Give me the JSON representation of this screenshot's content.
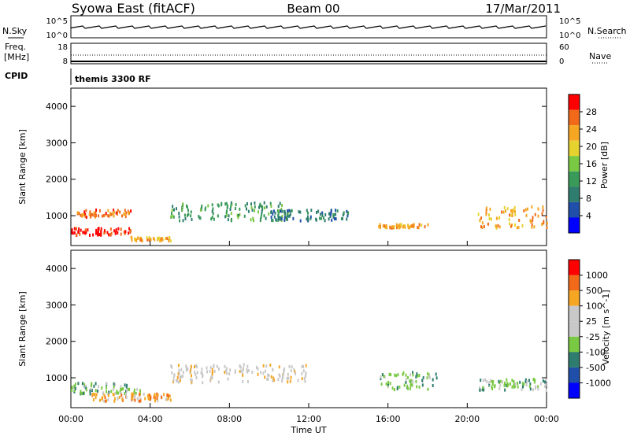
{
  "header": {
    "station": "Syowa East (fitACF)",
    "beam": "Beam 00",
    "date": "17/Mar/2011"
  },
  "noise_panel": {
    "left_label": "N.Sky",
    "right_label": "N.Search",
    "left_ticks": [
      "10^5",
      "10^0"
    ],
    "right_ticks": [
      "10^5",
      "10^0"
    ]
  },
  "freq_panel": {
    "left_label_1": "Freq.",
    "left_label_2": "[MHz]",
    "right_label": "Nave",
    "left_ticks": [
      "18",
      "8"
    ],
    "right_ticks": [
      "60",
      "0"
    ]
  },
  "cpid": {
    "label": "CPID",
    "value": "themis 3300 RF"
  },
  "time_axis": {
    "label": "Time UT",
    "ticks": [
      "00:00",
      "04:00",
      "08:00",
      "12:00",
      "16:00",
      "20:00",
      "00:00"
    ]
  },
  "colors": {
    "power": [
      "#0000ff",
      "#1f4fa8",
      "#2e7d6f",
      "#3a9a5a",
      "#7ac943",
      "#e6d22e",
      "#f5a623",
      "#f06a1a",
      "#ff0000"
    ],
    "velocity": [
      "#ff0000",
      "#f06a1a",
      "#f5a623",
      "#c8c8c8",
      "#c8c8c8",
      "#7ac943",
      "#2e7d6f",
      "#1f4fa8",
      "#0000ff"
    ]
  },
  "chart_data": [
    {
      "type": "heatmap",
      "quantity": "power",
      "ylabel": "Slant Range [km]",
      "xlabel": "",
      "ylim": [
        180,
        4500
      ],
      "yticks": [
        1000,
        2000,
        3000,
        4000
      ],
      "xlim": [
        0,
        24
      ],
      "colorbar": {
        "label": "Power [dB]",
        "ticks": [
          "4",
          "8",
          "12",
          "16",
          "20",
          "24",
          "28"
        ]
      },
      "bands": [
        {
          "t": [
            0.0,
            3.0
          ],
          "r": [
            500,
            700
          ],
          "level": 8
        },
        {
          "t": [
            0.3,
            3.0
          ],
          "r": [
            1000,
            1200
          ],
          "level": 7
        },
        {
          "t": [
            3.0,
            5.0
          ],
          "r": [
            350,
            450
          ],
          "level": 6
        },
        {
          "t": [
            5.0,
            11.0
          ],
          "r": [
            900,
            1400
          ],
          "level": 3
        },
        {
          "t": [
            10.0,
            14.0
          ],
          "r": [
            900,
            1200
          ],
          "level": 2
        },
        {
          "t": [
            15.5,
            18.0
          ],
          "r": [
            700,
            800
          ],
          "level": 6
        },
        {
          "t": [
            20.5,
            24.0
          ],
          "r": [
            700,
            1300
          ],
          "level": 6
        }
      ]
    },
    {
      "type": "heatmap",
      "quantity": "velocity",
      "ylabel": "Slant Range [km]",
      "xlabel": "Time UT",
      "ylim": [
        180,
        4500
      ],
      "yticks": [
        1000,
        2000,
        3000,
        4000
      ],
      "xlim": [
        0,
        24
      ],
      "colorbar": {
        "label": "Velocity [m s^-1]",
        "ticks": [
          "1000",
          "500",
          "100",
          "25",
          "-25",
          "-100",
          "-500",
          "-1000"
        ]
      },
      "bands": [
        {
          "t": [
            0.0,
            3.5
          ],
          "r": [
            600,
            900
          ],
          "level": 5
        },
        {
          "t": [
            1.0,
            5.0
          ],
          "r": [
            400,
            600
          ],
          "level": 2
        },
        {
          "t": [
            5.0,
            12.0
          ],
          "r": [
            900,
            1400
          ],
          "level": 3
        },
        {
          "t": [
            15.5,
            18.5
          ],
          "r": [
            700,
            1200
          ],
          "level": 5
        },
        {
          "t": [
            20.5,
            24.0
          ],
          "r": [
            700,
            1000
          ],
          "level": 5
        }
      ]
    }
  ]
}
